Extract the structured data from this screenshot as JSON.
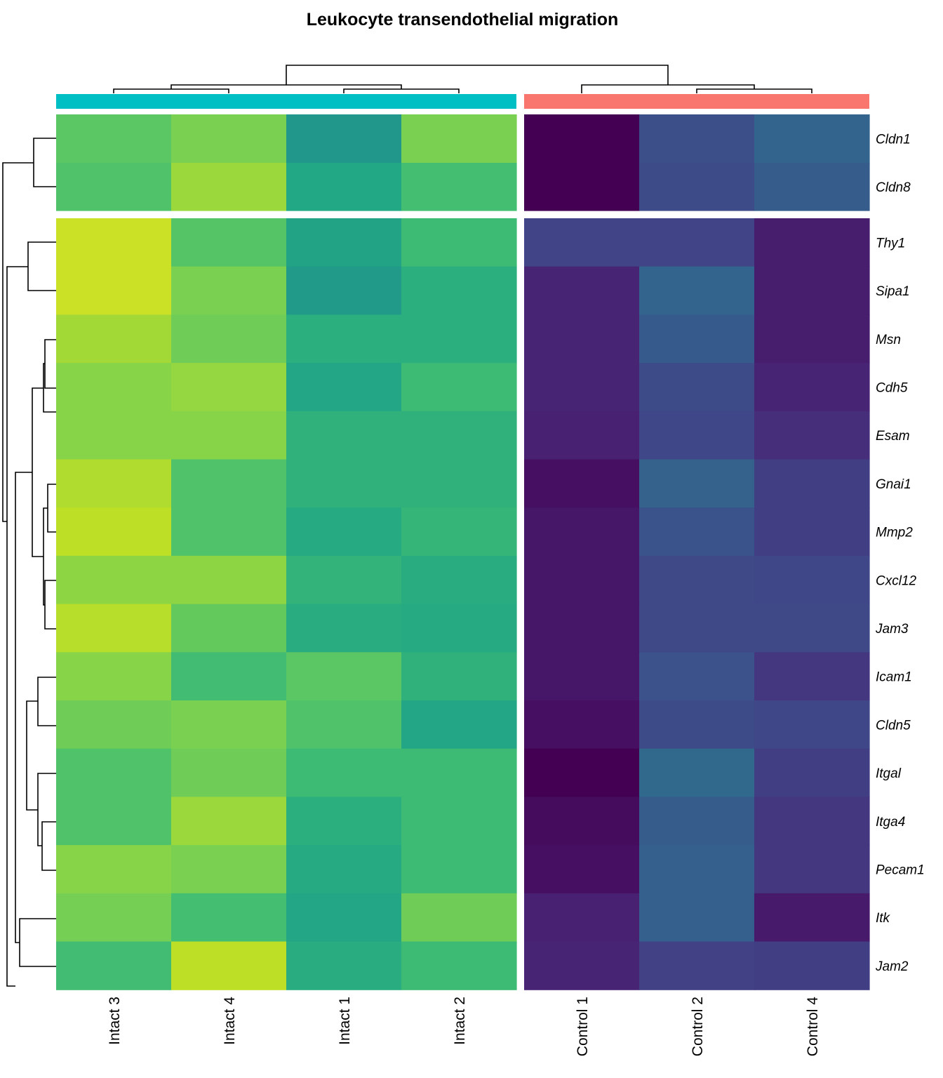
{
  "chart_data": {
    "type": "heatmap",
    "title": "Leukocyte transendothelial migration",
    "columns": [
      "Intact 3",
      "Intact 4",
      "Intact 1",
      "Intact 2",
      "Control 1",
      "Control 2",
      "Control 4"
    ],
    "column_groups": [
      {
        "members": [
          "Intact 3",
          "Intact 4",
          "Intact 1",
          "Intact 2"
        ],
        "color": "#00BFC4"
      },
      {
        "members": [
          "Control 1",
          "Control 2",
          "Control 4"
        ],
        "color": "#F8766D"
      }
    ],
    "rows": [
      "Cldn1",
      "Cldn8",
      "Thy1",
      "Sipa1",
      "Msn",
      "Cdh5",
      "Esam",
      "Gnai1",
      "Mmp2",
      "Cxcl12",
      "Jam3",
      "Icam1",
      "Cldn5",
      "Itgal",
      "Itga4",
      "Pecam1",
      "Itk",
      "Jam2"
    ],
    "row_splits": [
      2
    ],
    "column_splits": [
      4
    ],
    "color_scale": "viridis",
    "value_range": [
      0,
      1
    ],
    "values": [
      [
        0.74,
        0.8,
        0.52,
        0.8,
        0.0,
        0.24,
        0.32
      ],
      [
        0.72,
        0.85,
        0.6,
        0.7,
        0.0,
        0.23,
        0.29
      ],
      [
        0.92,
        0.73,
        0.58,
        0.68,
        0.2,
        0.2,
        0.08
      ],
      [
        0.92,
        0.8,
        0.54,
        0.63,
        0.1,
        0.32,
        0.08
      ],
      [
        0.86,
        0.78,
        0.63,
        0.63,
        0.1,
        0.28,
        0.08
      ],
      [
        0.82,
        0.84,
        0.59,
        0.68,
        0.1,
        0.23,
        0.1
      ],
      [
        0.82,
        0.82,
        0.64,
        0.64,
        0.09,
        0.21,
        0.13
      ],
      [
        0.88,
        0.72,
        0.64,
        0.64,
        0.04,
        0.31,
        0.18
      ],
      [
        0.9,
        0.72,
        0.61,
        0.66,
        0.06,
        0.26,
        0.18
      ],
      [
        0.83,
        0.83,
        0.65,
        0.62,
        0.06,
        0.22,
        0.21
      ],
      [
        0.89,
        0.76,
        0.62,
        0.61,
        0.06,
        0.22,
        0.22
      ],
      [
        0.82,
        0.69,
        0.74,
        0.64,
        0.06,
        0.25,
        0.16
      ],
      [
        0.78,
        0.8,
        0.72,
        0.59,
        0.04,
        0.23,
        0.21
      ],
      [
        0.72,
        0.78,
        0.68,
        0.68,
        0.0,
        0.34,
        0.18
      ],
      [
        0.72,
        0.85,
        0.63,
        0.68,
        0.03,
        0.29,
        0.16
      ],
      [
        0.82,
        0.8,
        0.61,
        0.68,
        0.04,
        0.3,
        0.16
      ],
      [
        0.79,
        0.7,
        0.59,
        0.78,
        0.09,
        0.3,
        0.07
      ],
      [
        0.69,
        0.9,
        0.62,
        0.68,
        0.1,
        0.19,
        0.18
      ]
    ]
  }
}
